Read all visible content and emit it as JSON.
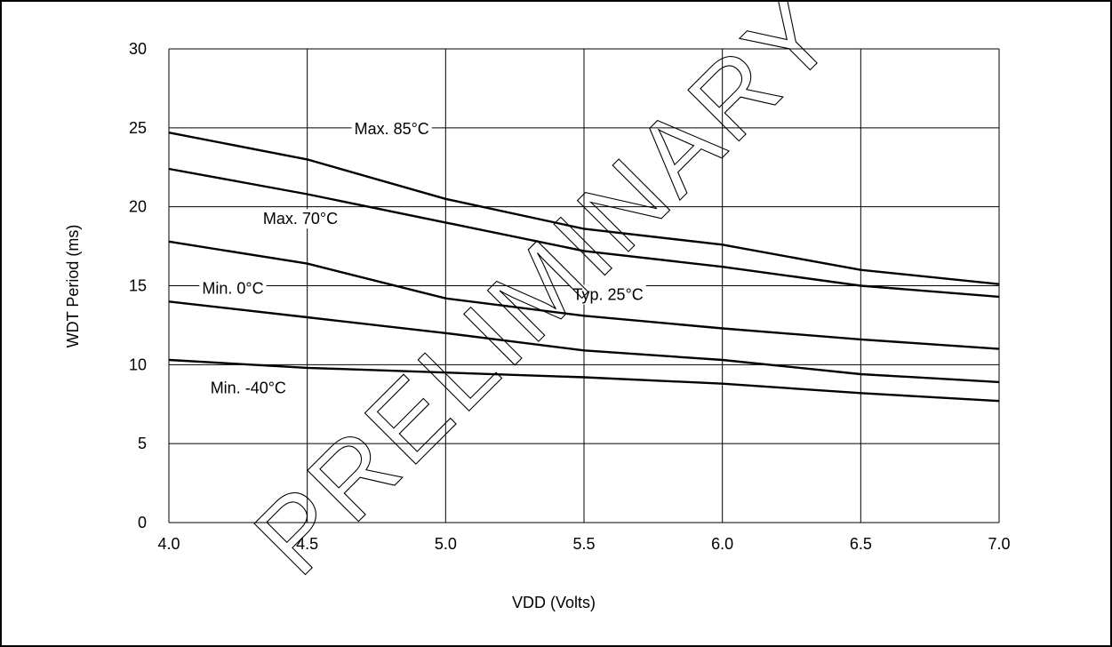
{
  "chart_data": {
    "type": "line",
    "xlabel": "VDD (Volts)",
    "ylabel": "WDT Period (ms)",
    "xlim": [
      4.0,
      7.0
    ],
    "ylim": [
      0,
      30
    ],
    "xticks": [
      "4.0",
      "4.5",
      "5.0",
      "5.5",
      "6.0",
      "6.5",
      "7.0"
    ],
    "yticks": [
      "0",
      "5",
      "10",
      "15",
      "20",
      "25",
      "30"
    ],
    "grid": true,
    "x": [
      4.0,
      4.5,
      5.0,
      5.5,
      6.0,
      6.5,
      7.0
    ],
    "series": [
      {
        "name": "Max. 85°C",
        "values": [
          24.7,
          23.0,
          20.5,
          18.6,
          17.6,
          16.0,
          15.1
        ]
      },
      {
        "name": "Max. 70°C",
        "values": [
          22.4,
          20.8,
          19.0,
          17.2,
          16.2,
          15.0,
          14.3
        ]
      },
      {
        "name": "Typ. 25°C",
        "values": [
          17.8,
          16.4,
          14.2,
          13.1,
          12.3,
          11.6,
          11.0
        ]
      },
      {
        "name": "Min. 0°C",
        "values": [
          14.0,
          13.0,
          12.0,
          10.9,
          10.3,
          9.4,
          8.9
        ]
      },
      {
        "name": "Min. -40°C",
        "values": [
          10.3,
          9.8,
          9.5,
          9.2,
          8.8,
          8.2,
          7.7
        ]
      }
    ],
    "annotations": [
      {
        "text": "Max. 85°C",
        "x": 4.67,
        "y": 24.6
      },
      {
        "text": "Max. 70°C",
        "x": 4.34,
        "y": 18.9
      },
      {
        "text": "Min. 0°C",
        "x": 4.12,
        "y": 14.5
      },
      {
        "text": "Typ. 25°C",
        "x": 5.46,
        "y": 14.1
      },
      {
        "text": "Min. -40°C",
        "x": 4.15,
        "y": 8.2
      }
    ],
    "watermark": "PRELIMINARY"
  }
}
